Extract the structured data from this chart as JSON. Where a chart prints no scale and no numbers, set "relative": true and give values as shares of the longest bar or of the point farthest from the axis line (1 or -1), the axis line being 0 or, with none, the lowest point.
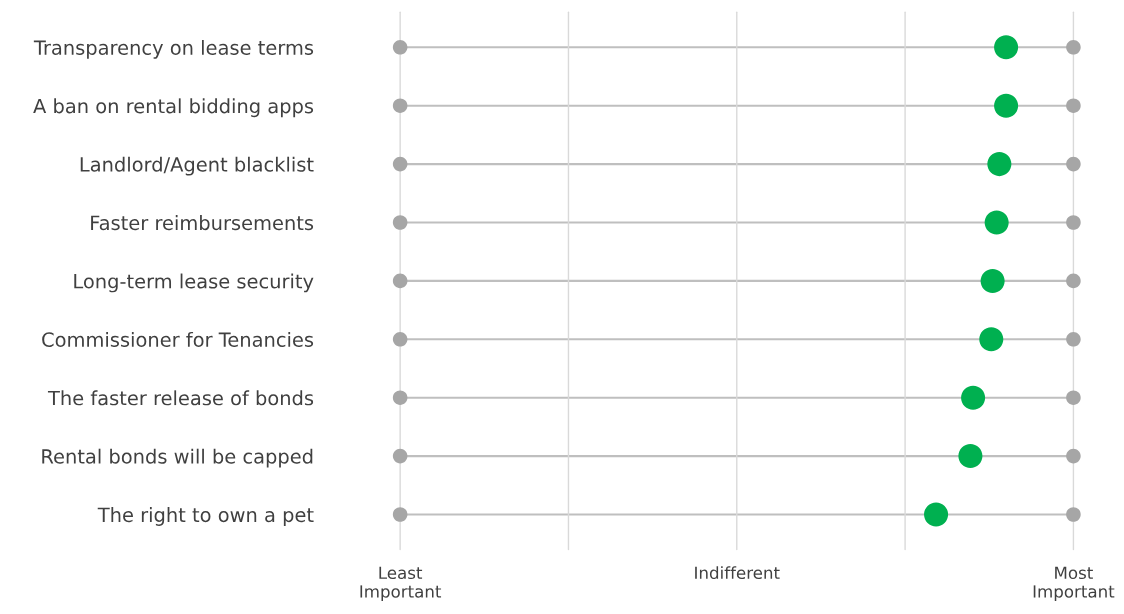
{
  "chart_data": {
    "type": "scatter",
    "orientation": "horizontal",
    "relative": true,
    "categories": [
      "Transparency on lease terms",
      "A ban on rental bidding apps",
      "Landlord/Agent blacklist",
      "Faster reimbursements",
      "Long-term lease security",
      "Commissioner for Tenancies",
      "The faster release of bonds",
      "Rental bonds will be capped",
      "The right to own a pet"
    ],
    "series": [
      {
        "color": "#a6a6a6",
        "values": [
          0,
          0,
          0,
          0,
          0,
          0,
          0,
          0,
          0
        ]
      },
      {
        "color": "#a6a6a6",
        "values": [
          1,
          1,
          1,
          1,
          1,
          1,
          1,
          1,
          1
        ]
      },
      {
        "color": "#00b050",
        "values": [
          0.9,
          0.9,
          0.89,
          0.886,
          0.88,
          0.878,
          0.851,
          0.847,
          0.796
        ]
      }
    ],
    "ref_lines": [
      {
        "axis": "x",
        "value": 0,
        "color": "#d9d9d9"
      },
      {
        "axis": "x",
        "value": 0.25,
        "color": "#d9d9d9"
      },
      {
        "axis": "x",
        "value": 0.5,
        "color": "#d9d9d9"
      },
      {
        "axis": "x",
        "value": 0.75,
        "color": "#d9d9d9"
      },
      {
        "axis": "x",
        "value": 1,
        "color": "#d9d9d9"
      }
    ],
    "annotations": [
      "Least\nImportant",
      "Indifferent",
      "Most\nImportant"
    ],
    "grid": "y",
    "marker": "circle"
  }
}
